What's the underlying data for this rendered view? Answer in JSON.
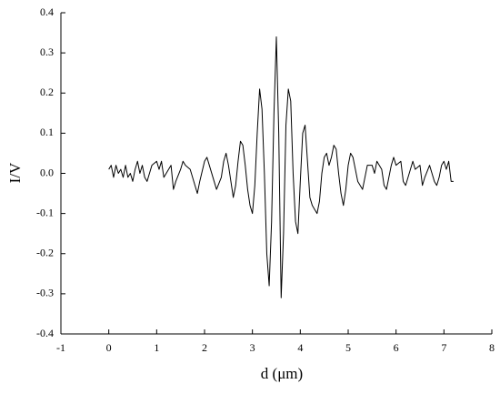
{
  "chart_data": {
    "type": "line",
    "xlabel": "d (μm)",
    "ylabel": "I/V",
    "color": "#000000",
    "xlim": [
      -1,
      8
    ],
    "xticks": [
      -1,
      0,
      1,
      2,
      3,
      4,
      5,
      6,
      7,
      8
    ],
    "ylim": [
      -0.4,
      0.4
    ],
    "yticks": [
      -0.4,
      -0.3,
      -0.2,
      -0.1,
      {
        "value": 0,
        "label": "0.0"
      },
      0.1,
      0.2,
      0.3,
      0.4
    ],
    "x": [
      0,
      0.05,
      0.1,
      0.15,
      0.2,
      0.25,
      0.3,
      0.35,
      0.4,
      0.45,
      0.5,
      0.55,
      0.6,
      0.65,
      0.7,
      0.75,
      0.8,
      0.85,
      0.9,
      1.0,
      1.05,
      1.1,
      1.15,
      1.2,
      1.3,
      1.35,
      1.4,
      1.5,
      1.55,
      1.6,
      1.7,
      1.8,
      1.85,
      1.9,
      2.0,
      2.05,
      2.1,
      2.2,
      2.25,
      2.35,
      2.4,
      2.45,
      2.5,
      2.55,
      2.6,
      2.65,
      2.7,
      2.75,
      2.8,
      2.85,
      2.9,
      2.95,
      3.0,
      3.05,
      3.1,
      3.15,
      3.2,
      3.25,
      3.3,
      3.35,
      3.4,
      3.45,
      3.5,
      3.55,
      3.6,
      3.65,
      3.7,
      3.75,
      3.8,
      3.85,
      3.9,
      3.95,
      4.0,
      4.05,
      4.1,
      4.15,
      4.2,
      4.25,
      4.3,
      4.35,
      4.4,
      4.45,
      4.5,
      4.55,
      4.6,
      4.65,
      4.7,
      4.75,
      4.8,
      4.85,
      4.9,
      4.95,
      5.0,
      5.05,
      5.1,
      5.15,
      5.2,
      5.3,
      5.35,
      5.4,
      5.5,
      5.55,
      5.6,
      5.7,
      5.75,
      5.8,
      5.9,
      5.95,
      6.0,
      6.1,
      6.15,
      6.2,
      6.3,
      6.35,
      6.4,
      6.5,
      6.55,
      6.6,
      6.7,
      6.75,
      6.8,
      6.85,
      6.9,
      6.95,
      7.0,
      7.05,
      7.1,
      7.15,
      7.2
    ],
    "values": [
      0.01,
      0.02,
      -0.01,
      0.02,
      0.0,
      0.01,
      -0.01,
      0.02,
      -0.01,
      0.0,
      -0.02,
      0.01,
      0.03,
      0.0,
      0.02,
      -0.01,
      -0.02,
      0.0,
      0.02,
      0.03,
      0.01,
      0.03,
      -0.01,
      0.0,
      0.02,
      -0.04,
      -0.02,
      0.01,
      0.03,
      0.02,
      0.01,
      -0.03,
      -0.05,
      -0.02,
      0.03,
      0.04,
      0.02,
      -0.02,
      -0.04,
      -0.01,
      0.03,
      0.05,
      0.02,
      -0.02,
      -0.06,
      -0.03,
      0.03,
      0.08,
      0.07,
      0.02,
      -0.04,
      -0.08,
      -0.1,
      -0.03,
      0.1,
      0.21,
      0.16,
      0.0,
      -0.2,
      -0.28,
      -0.12,
      0.15,
      0.34,
      0.1,
      -0.31,
      -0.15,
      0.12,
      0.21,
      0.18,
      0.0,
      -0.12,
      -0.15,
      -0.02,
      0.1,
      0.12,
      0.03,
      -0.06,
      -0.08,
      -0.09,
      -0.1,
      -0.07,
      0.0,
      0.04,
      0.05,
      0.02,
      0.04,
      0.07,
      0.06,
      0.0,
      -0.05,
      -0.08,
      -0.04,
      0.02,
      0.05,
      0.04,
      0.01,
      -0.02,
      -0.04,
      -0.01,
      0.02,
      0.02,
      0.0,
      0.03,
      0.01,
      -0.03,
      -0.04,
      0.02,
      0.04,
      0.02,
      0.03,
      -0.02,
      -0.03,
      0.01,
      0.03,
      0.01,
      0.02,
      -0.03,
      -0.01,
      0.02,
      0.0,
      -0.02,
      -0.03,
      -0.01,
      0.02,
      0.03,
      0.01,
      0.03,
      -0.02,
      -0.02
    ]
  }
}
